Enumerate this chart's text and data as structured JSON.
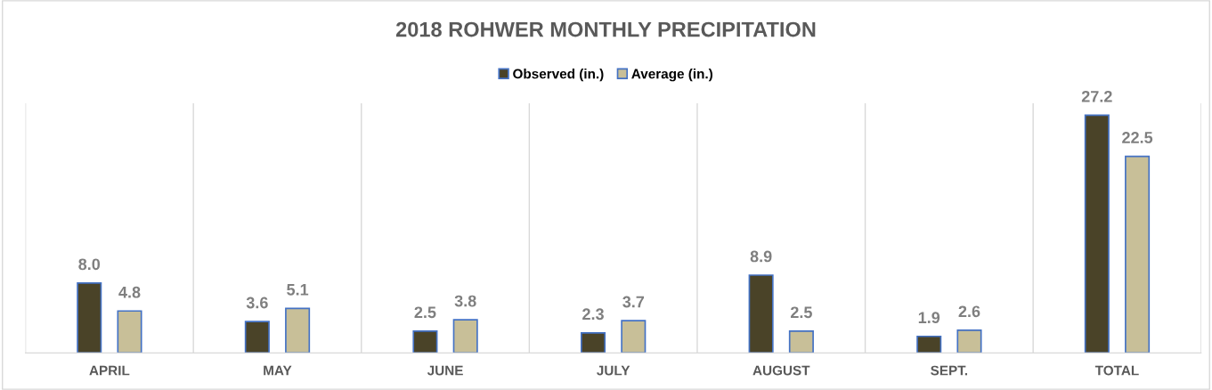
{
  "chart_data": {
    "type": "bar",
    "title": "2018 ROHWER MONTHLY PRECIPITATION",
    "categories": [
      "APRIL",
      "MAY",
      "JUNE",
      "JULY",
      "AUGUST",
      "SEPT.",
      "TOTAL"
    ],
    "series": [
      {
        "name": "Observed (in.)",
        "color": "#4a4328",
        "values": [
          8.0,
          3.6,
          2.5,
          2.3,
          8.9,
          1.9,
          27.2
        ],
        "value_labels": [
          "8.0",
          "3.6",
          "2.5",
          "2.3",
          "8.9",
          "1.9",
          "27.2"
        ]
      },
      {
        "name": "Average (in.)",
        "color": "#c8bf98",
        "values": [
          4.8,
          5.1,
          3.8,
          3.7,
          2.5,
          2.6,
          22.5
        ],
        "value_labels": [
          "4.8",
          "5.1",
          "3.8",
          "3.7",
          "2.5",
          "2.6",
          "22.5"
        ]
      }
    ],
    "grid": "x",
    "legend": "top"
  }
}
